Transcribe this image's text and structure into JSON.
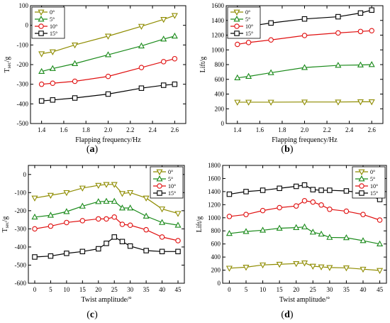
{
  "chart_data": [
    {
      "panel_label": "(a)",
      "type": "line",
      "xlabel": "Flapping frequency/Hz",
      "ylabel": "T_sec/g",
      "ylabel_main": "T",
      "ylabel_sub": "sec",
      "ylabel_suffix": "/g",
      "xlim": [
        1.3,
        2.7
      ],
      "ylim": [
        -500,
        100
      ],
      "xticks": [
        1.4,
        1.6,
        1.8,
        2.0,
        2.2,
        2.4,
        2.6
      ],
      "xtick_labels": [
        "1.4",
        "1.6",
        "1.8",
        "2.0",
        "2.2",
        "2.4",
        "2.6"
      ],
      "yticks": [
        -500,
        -400,
        -300,
        -200,
        -100,
        0,
        100
      ],
      "ytick_labels": [
        "-500",
        "-400",
        "-300",
        "-200",
        "-100",
        "0",
        "100"
      ],
      "legend_position": "top-left",
      "x": [
        1.4,
        1.5,
        1.7,
        2.0,
        2.3,
        2.5,
        2.6
      ],
      "series": [
        {
          "name": "0°",
          "color": "#8f8c00",
          "marker": "triangle-down",
          "values": [
            -145,
            -135,
            -100,
            -55,
            -5,
            30,
            50
          ]
        },
        {
          "name": "5°",
          "color": "#1a8a1a",
          "marker": "triangle-up",
          "values": [
            -235,
            -220,
            -195,
            -150,
            -105,
            -70,
            -55
          ]
        },
        {
          "name": "10°",
          "color": "#e01010",
          "marker": "circle",
          "values": [
            -300,
            -295,
            -285,
            -260,
            -215,
            -185,
            -170
          ]
        },
        {
          "name": "15°",
          "color": "#000000",
          "marker": "square",
          "values": [
            -385,
            -380,
            -370,
            -350,
            -320,
            -305,
            -300
          ]
        }
      ]
    },
    {
      "panel_label": "(b)",
      "type": "line",
      "xlabel": "Flapping frequency/Hz",
      "ylabel": "Lift/g",
      "ylabel_main": "Lift/g",
      "ylabel_sub": "",
      "ylabel_suffix": "",
      "xlim": [
        1.3,
        2.7
      ],
      "ylim": [
        0,
        1600
      ],
      "xticks": [
        1.4,
        1.6,
        1.8,
        2.0,
        2.2,
        2.4,
        2.6
      ],
      "xtick_labels": [
        "1.4",
        "1.6",
        "1.8",
        "2.0",
        "2.2",
        "2.4",
        "2.6"
      ],
      "yticks": [
        0,
        200,
        400,
        600,
        800,
        1000,
        1200,
        1400,
        1600
      ],
      "ytick_labels": [
        "0",
        "200",
        "400",
        "600",
        "800",
        "1000",
        "1200",
        "1400",
        "1600"
      ],
      "legend_position": "top-left",
      "x": [
        1.4,
        1.5,
        1.7,
        2.0,
        2.3,
        2.5,
        2.6
      ],
      "series": [
        {
          "name": "0°",
          "color": "#8f8c00",
          "marker": "triangle-down",
          "values": [
            290,
            290,
            290,
            292,
            292,
            295,
            295
          ]
        },
        {
          "name": "5°",
          "color": "#1a8a1a",
          "marker": "triangle-up",
          "values": [
            620,
            640,
            690,
            760,
            790,
            795,
            800
          ]
        },
        {
          "name": "10°",
          "color": "#e01010",
          "marker": "circle",
          "values": [
            1075,
            1100,
            1135,
            1195,
            1230,
            1250,
            1260
          ]
        },
        {
          "name": "15°",
          "color": "#000000",
          "marker": "square",
          "values": [
            1315,
            1320,
            1365,
            1420,
            1450,
            1500,
            1540
          ]
        }
      ]
    },
    {
      "panel_label": "(c)",
      "type": "line",
      "xlabel": "Twist amplitude/°",
      "ylabel": "T_sec/g",
      "ylabel_main": "T",
      "ylabel_sub": "sec",
      "ylabel_suffix": "/g",
      "xlim": [
        -2,
        47
      ],
      "ylim": [
        -600,
        50
      ],
      "xticks": [
        0,
        5,
        10,
        15,
        20,
        25,
        30,
        35,
        40,
        45
      ],
      "xtick_labels": [
        "0",
        "5",
        "10",
        "15",
        "20",
        "25",
        "30",
        "35",
        "40",
        "45"
      ],
      "yticks": [
        -600,
        -500,
        -400,
        -300,
        -200,
        -100,
        0
      ],
      "ytick_labels": [
        "-600",
        "-500",
        "-400",
        "-300",
        "-200",
        "-100",
        "0"
      ],
      "legend_position": "top-right",
      "x": [
        0,
        5,
        10,
        15,
        20,
        22.5,
        25,
        27.5,
        30,
        35,
        40,
        45
      ],
      "series": [
        {
          "name": "0°",
          "color": "#8f8c00",
          "marker": "triangle-down",
          "values": [
            -130,
            -115,
            -100,
            -75,
            -60,
            -55,
            -55,
            -105,
            -100,
            -130,
            -190,
            -215
          ]
        },
        {
          "name": "5°",
          "color": "#1a8a1a",
          "marker": "triangle-up",
          "values": [
            -235,
            -225,
            -205,
            -175,
            -150,
            -148,
            -148,
            -185,
            -185,
            -230,
            -265,
            -280
          ]
        },
        {
          "name": "10°",
          "color": "#e01010",
          "marker": "circle",
          "values": [
            -300,
            -285,
            -265,
            -255,
            -245,
            -245,
            -235,
            -275,
            -280,
            -305,
            -345,
            -365
          ]
        },
        {
          "name": "15°",
          "color": "#000000",
          "marker": "square",
          "values": [
            -455,
            -450,
            -435,
            -425,
            -410,
            -380,
            -345,
            -370,
            -395,
            -420,
            -425,
            -425
          ]
        }
      ]
    },
    {
      "panel_label": "(d)",
      "type": "line",
      "xlabel": "Twist amplitude/°",
      "ylabel": "Lift/g",
      "ylabel_main": "Lift/g",
      "ylabel_sub": "",
      "ylabel_suffix": "",
      "xlim": [
        -2,
        47
      ],
      "ylim": [
        0,
        1800
      ],
      "xticks": [
        0,
        5,
        10,
        15,
        20,
        25,
        30,
        35,
        40,
        45
      ],
      "xtick_labels": [
        "0",
        "5",
        "10",
        "15",
        "20",
        "25",
        "30",
        "35",
        "40",
        "45"
      ],
      "yticks": [
        0,
        200,
        400,
        600,
        800,
        1000,
        1200,
        1400,
        1600,
        1800
      ],
      "ytick_labels": [
        "0",
        "200",
        "400",
        "600",
        "800",
        "1000",
        "1200",
        "1400",
        "1600",
        "1800"
      ],
      "legend_position": "top-right",
      "x": [
        0,
        5,
        10,
        15,
        20,
        22.5,
        25,
        27.5,
        30,
        35,
        40,
        45
      ],
      "series": [
        {
          "name": "0°",
          "color": "#8f8c00",
          "marker": "triangle-down",
          "values": [
            230,
            245,
            280,
            290,
            300,
            310,
            260,
            250,
            240,
            235,
            215,
            195
          ]
        },
        {
          "name": "5°",
          "color": "#1a8a1a",
          "marker": "triangle-up",
          "values": [
            760,
            790,
            810,
            840,
            850,
            860,
            780,
            750,
            700,
            695,
            650,
            600
          ]
        },
        {
          "name": "10°",
          "color": "#e01010",
          "marker": "circle",
          "values": [
            1020,
            1050,
            1110,
            1155,
            1180,
            1260,
            1240,
            1195,
            1130,
            1100,
            1050,
            965
          ]
        },
        {
          "name": "15°",
          "color": "#000000",
          "marker": "square",
          "values": [
            1360,
            1400,
            1420,
            1450,
            1480,
            1500,
            1430,
            1420,
            1420,
            1410,
            1380,
            1280
          ]
        }
      ]
    }
  ]
}
